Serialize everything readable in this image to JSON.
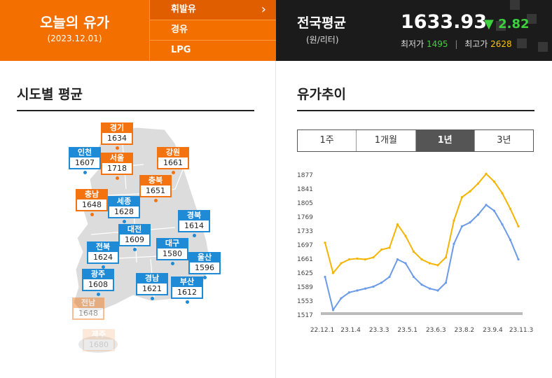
{
  "header": {
    "title": "오늘의 유가",
    "date": "(2023.12.01)",
    "fuel_tabs": [
      {
        "label": "휘발유",
        "active": true
      },
      {
        "label": "경유",
        "active": false
      },
      {
        "label": "LPG",
        "active": false
      }
    ],
    "chevron": "›",
    "national": {
      "label": "전국평균",
      "unit": "(원/리터)",
      "price": "1633.93",
      "change_arrow": "▼",
      "change": "2.82",
      "min_label": "최저가",
      "min": "1495",
      "max_label": "최고가",
      "max": "2628"
    }
  },
  "regions_section": {
    "title": "시도별 평균",
    "regions": [
      {
        "name": "경기",
        "price": "1634",
        "color": "orange"
      },
      {
        "name": "인천",
        "price": "1607",
        "color": "blue"
      },
      {
        "name": "서울",
        "price": "1718",
        "color": "orange"
      },
      {
        "name": "강원",
        "price": "1661",
        "color": "orange"
      },
      {
        "name": "충북",
        "price": "1651",
        "color": "orange"
      },
      {
        "name": "충남",
        "price": "1648",
        "color": "orange"
      },
      {
        "name": "세종",
        "price": "1628",
        "color": "blue"
      },
      {
        "name": "경북",
        "price": "1614",
        "color": "blue"
      },
      {
        "name": "대전",
        "price": "1609",
        "color": "blue"
      },
      {
        "name": "전북",
        "price": "1624",
        "color": "blue"
      },
      {
        "name": "대구",
        "price": "1580",
        "color": "blue"
      },
      {
        "name": "울산",
        "price": "1596",
        "color": "blue"
      },
      {
        "name": "광주",
        "price": "1608",
        "color": "blue"
      },
      {
        "name": "경남",
        "price": "1621",
        "color": "blue"
      },
      {
        "name": "부산",
        "price": "1612",
        "color": "blue"
      },
      {
        "name": "전남",
        "price": "1648",
        "color": "orange"
      },
      {
        "name": "제주",
        "price": "1680",
        "color": "orange"
      }
    ]
  },
  "trend_section": {
    "title": "유가추이",
    "period_tabs": [
      {
        "label": "1주",
        "active": false
      },
      {
        "label": "1개월",
        "active": false
      },
      {
        "label": "1년",
        "active": true
      },
      {
        "label": "3년",
        "active": false
      }
    ]
  },
  "chart_data": {
    "type": "line",
    "x": [
      "22.12.1",
      "22.12.15",
      "23.1.1",
      "23.1.15",
      "23.2.1",
      "23.2.15",
      "23.3.1",
      "23.3.15",
      "23.4.1",
      "23.4.15",
      "23.5.1",
      "23.5.15",
      "23.6.1",
      "23.6.15",
      "23.7.1",
      "23.7.15",
      "23.8.1",
      "23.8.15",
      "23.9.1",
      "23.9.15",
      "23.10.1",
      "23.10.15",
      "23.11.1",
      "23.11.15",
      "23.12.1"
    ],
    "xtick_labels": [
      "22.12.1",
      "23.1.4",
      "23.3.3",
      "23.5.1",
      "23.6.3",
      "23.8.2",
      "23.9.4",
      "23.11.3"
    ],
    "yticks": [
      1517,
      1553,
      1589,
      1625,
      1661,
      1697,
      1733,
      1769,
      1805,
      1841,
      1877
    ],
    "ylim": [
      1517,
      1877
    ],
    "series": [
      {
        "color": "#f5b400",
        "values": [
          1703,
          1625,
          1650,
          1660,
          1662,
          1660,
          1665,
          1685,
          1690,
          1750,
          1720,
          1680,
          1660,
          1650,
          1645,
          1665,
          1760,
          1820,
          1835,
          1855,
          1880,
          1860,
          1830,
          1790,
          1745
        ]
      },
      {
        "color": "#6a9ae8",
        "values": [
          1615,
          1530,
          1560,
          1575,
          1580,
          1585,
          1590,
          1600,
          1615,
          1660,
          1650,
          1615,
          1595,
          1585,
          1580,
          1600,
          1700,
          1745,
          1755,
          1775,
          1800,
          1785,
          1750,
          1710,
          1660
        ]
      }
    ]
  }
}
